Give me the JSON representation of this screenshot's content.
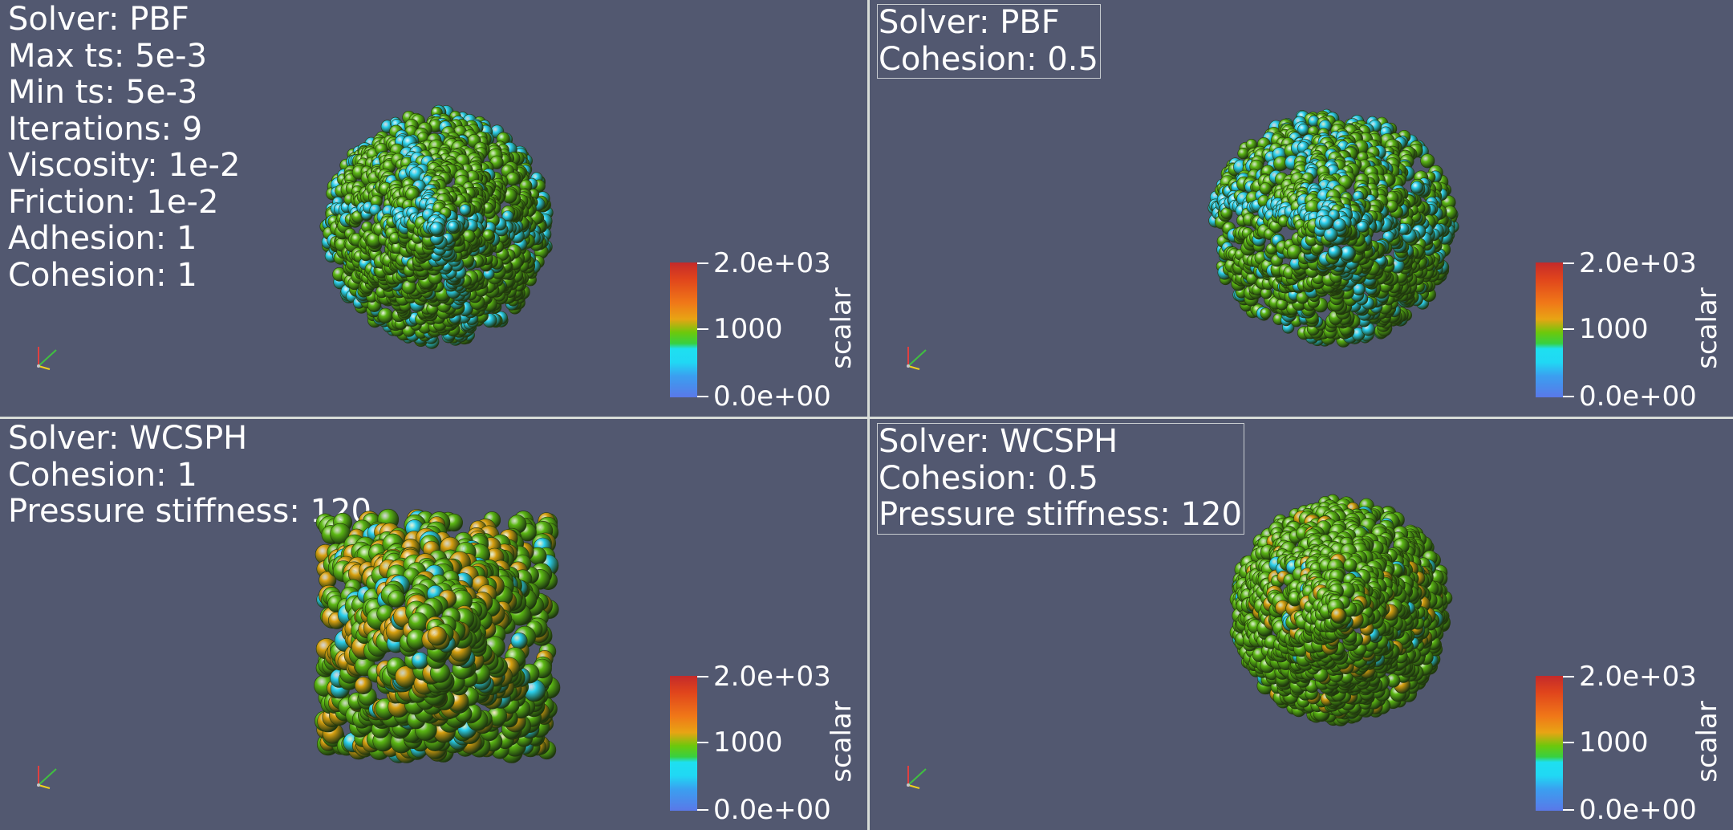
{
  "viewports": [
    {
      "id": "pbf-cohesion-1",
      "annotation": [
        "Solver: PBF",
        "Max  ts: 5e-3",
        "Min ts: 5e-3",
        "Iterations: 9",
        "Viscosity: 1e-2",
        "Friction: 1e-2",
        "Adhesion: 1",
        "Cohesion: 1"
      ],
      "annotation_boxed": false,
      "colorbar": {
        "title": "scalar",
        "top_label": "2.0e+03",
        "mid_label": "1000",
        "bottom_label": "0.0e+00",
        "range": [
          0,
          2000
        ]
      }
    },
    {
      "id": "pbf-cohesion-0.5",
      "annotation": [
        "Solver: PBF",
        "Cohesion: 0.5"
      ],
      "annotation_boxed": true,
      "colorbar": {
        "title": "scalar",
        "top_label": "2.0e+03",
        "mid_label": "1000",
        "bottom_label": "0.0e+00",
        "range": [
          0,
          2000
        ]
      }
    },
    {
      "id": "wcsph-cohesion-1",
      "annotation": [
        "Solver: WCSPH",
        "Cohesion: 1",
        "Pressure stiffness: 120"
      ],
      "annotation_boxed": false,
      "colorbar": {
        "title": "scalar",
        "top_label": "2.0e+03",
        "mid_label": "1000",
        "bottom_label": "0.0e+00",
        "range": [
          0,
          2000
        ]
      }
    },
    {
      "id": "wcsph-cohesion-0.5",
      "annotation": [
        "Solver: WCSPH",
        "Cohesion: 0.5",
        "Pressure stiffness: 120"
      ],
      "annotation_boxed": true,
      "colorbar": {
        "title": "scalar",
        "top_label": "2.0e+03",
        "mid_label": "1000",
        "bottom_label": "0.0e+00",
        "range": [
          0,
          2000
        ]
      }
    }
  ],
  "colors": {
    "background": "#525870",
    "divider": "#d8dcd8",
    "particle_green": "#5cb814",
    "particle_cyan": "#2ad0ee",
    "particle_orange": "#d8a010"
  },
  "icons": [
    "orientation-axes-icon"
  ]
}
